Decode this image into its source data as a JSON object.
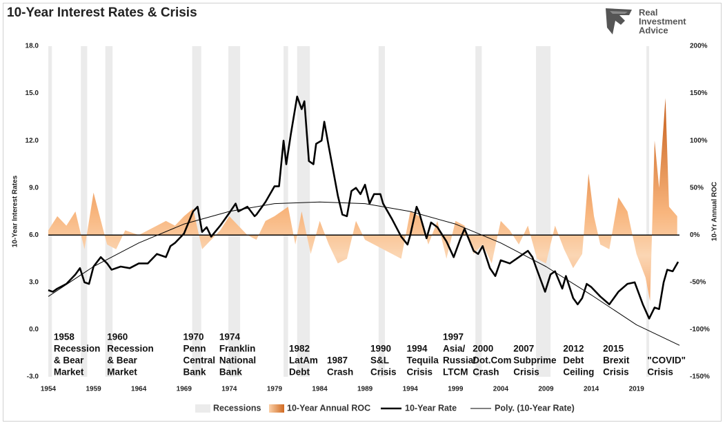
{
  "chart_data": {
    "type": "line",
    "title": "10-Year Interest Rates & Crisis",
    "logo": [
      "Real",
      "Investment",
      "Advice"
    ],
    "ylabel": "10-Year Interest Rates",
    "y2label": "10-Yr Annual ROC",
    "xlim": [
      1954,
      2023.75
    ],
    "xticks": [
      1954,
      1959,
      1964,
      1969,
      1974,
      1979,
      1984,
      1989,
      1994,
      1999,
      2004,
      2009,
      2014,
      2019
    ],
    "ylim": [
      -3,
      18
    ],
    "yticks": [
      {
        "value": -3,
        "label": "-3.0"
      },
      {
        "value": 0,
        "label": "0.0"
      },
      {
        "value": 3,
        "label": "3.0"
      },
      {
        "value": 6,
        "label": "6.0"
      },
      {
        "value": 9,
        "label": "9.0"
      },
      {
        "value": 12,
        "label": "12.0"
      },
      {
        "value": 15,
        "label": "15.0"
      },
      {
        "value": 18,
        "label": "18.0"
      }
    ],
    "y2lim": [
      -150,
      200
    ],
    "y2ticks": [
      {
        "value": -150,
        "label": "-150%"
      },
      {
        "value": -100,
        "label": "-100%"
      },
      {
        "value": -50,
        "label": "-50%"
      },
      {
        "value": 0,
        "label": "0%"
      },
      {
        "value": 50,
        "label": "50%"
      },
      {
        "value": 100,
        "label": "100%"
      },
      {
        "value": 150,
        "label": "150%"
      },
      {
        "value": 200,
        "label": "200%"
      }
    ],
    "recessions": {
      "name": "Recessions",
      "color": "#ebebeb",
      "periods": [
        [
          1954,
          1954.4
        ],
        [
          1957.6,
          1958.3
        ],
        [
          1960.3,
          1961.1
        ],
        [
          1969.9,
          1970.9
        ],
        [
          1973.9,
          1975.2
        ],
        [
          1980,
          1980.5
        ],
        [
          1981.5,
          1982.9
        ],
        [
          1990.5,
          1991.2
        ],
        [
          2001.2,
          2001.9
        ],
        [
          2007.9,
          2009.5
        ],
        [
          2020.1,
          2020.4
        ]
      ]
    },
    "series": [
      {
        "name": "10-Year Annual ROC",
        "color": "#ee8a3c",
        "type": "area",
        "axis": "y2",
        "x": [
          1954,
          1955,
          1956,
          1957,
          1958,
          1959,
          1960.5,
          1961.5,
          1962.5,
          1964,
          1966,
          1967,
          1968,
          1969,
          1970,
          1971,
          1972,
          1973,
          1974,
          1975,
          1976,
          1977,
          1978,
          1979,
          1980.5,
          1981.3,
          1982,
          1983,
          1984,
          1985,
          1986,
          1987,
          1988,
          1989,
          1990,
          1991,
          1992,
          1993,
          1994,
          1995,
          1996,
          1997,
          1998,
          1999,
          2000,
          2001,
          2002,
          2003,
          2004,
          2005,
          2006,
          2007,
          2008,
          2009,
          2010,
          2011,
          2012,
          2013,
          2013.7,
          2014.3,
          2015,
          2016,
          2017,
          2018,
          2019,
          2020,
          2020.5,
          2021,
          2021.5,
          2022.2,
          2022.6,
          2023.5
        ],
        "values": [
          5,
          20,
          10,
          25,
          -15,
          45,
          -10,
          -15,
          5,
          0,
          10,
          15,
          10,
          20,
          28,
          -15,
          -5,
          5,
          20,
          10,
          0,
          -5,
          15,
          20,
          30,
          -10,
          25,
          -20,
          15,
          -10,
          -30,
          -25,
          15,
          -5,
          -10,
          -15,
          -20,
          -25,
          25,
          20,
          -10,
          15,
          -25,
          15,
          10,
          -20,
          -10,
          -30,
          15,
          5,
          -10,
          10,
          -25,
          -30,
          10,
          -15,
          -35,
          -20,
          65,
          20,
          -10,
          -15,
          40,
          25,
          -20,
          -45,
          -70,
          100,
          50,
          145,
          30,
          20
        ]
      },
      {
        "name": "10-Year Rate",
        "color": "#000000",
        "type": "line",
        "width": 2.6,
        "x": [
          1954,
          1954.5,
          1955,
          1956,
          1957,
          1957.5,
          1958,
          1958.5,
          1959,
          1959.8,
          1960.5,
          1961,
          1962,
          1963,
          1964,
          1965,
          1966,
          1967,
          1967.5,
          1968,
          1969,
          1970,
          1970.5,
          1971,
          1971.5,
          1972,
          1973,
          1974,
          1974.7,
          1975,
          1976,
          1976.8,
          1977,
          1978,
          1979,
          1979.5,
          1980,
          1980.3,
          1980.8,
          1981.5,
          1982,
          1982.3,
          1982.8,
          1983.3,
          1983.6,
          1984.2,
          1984.5,
          1985,
          1986,
          1986.5,
          1987,
          1987.5,
          1988,
          1988.5,
          1989,
          1989.5,
          1990,
          1990.7,
          1991,
          1992,
          1993,
          1993.7,
          1994,
          1994.7,
          1995,
          1995.8,
          1996.3,
          1997,
          1998,
          1998.8,
          1999.5,
          2000,
          2001,
          2001.5,
          2002,
          2002.8,
          2003.4,
          2004,
          2005,
          2006,
          2007,
          2007.5,
          2008,
          2008.9,
          2009.5,
          2010,
          2010.8,
          2011.2,
          2012,
          2012.5,
          2013,
          2013.5,
          2014,
          2015,
          2016,
          2017,
          2018,
          2018.8,
          2019.7,
          2020.4,
          2021,
          2021.5,
          2022,
          2022.4,
          2023,
          2023.6
        ],
        "values": [
          2.5,
          2.4,
          2.6,
          2.9,
          3.5,
          3.9,
          3.0,
          2.9,
          4.0,
          4.6,
          4.2,
          3.8,
          4.0,
          3.9,
          4.2,
          4.2,
          4.8,
          4.6,
          5.3,
          5.5,
          6.1,
          7.5,
          7.8,
          6.2,
          6.5,
          5.9,
          6.6,
          7.4,
          8.0,
          7.5,
          7.8,
          7.2,
          7.3,
          8.1,
          9.1,
          9.1,
          12.0,
          10.5,
          12.4,
          14.8,
          14.0,
          14.5,
          10.7,
          10.5,
          11.8,
          12.0,
          13.2,
          11.6,
          8.5,
          7.3,
          7.2,
          8.8,
          9.0,
          8.6,
          9.2,
          8.0,
          8.6,
          8.6,
          8.0,
          7.0,
          5.9,
          5.4,
          6.0,
          7.8,
          7.4,
          5.8,
          6.8,
          6.5,
          5.6,
          4.6,
          5.7,
          6.4,
          5.0,
          4.8,
          5.3,
          3.9,
          3.4,
          4.4,
          4.2,
          4.6,
          5.0,
          4.6,
          3.8,
          2.4,
          3.5,
          3.7,
          2.6,
          3.4,
          2.0,
          1.6,
          2.0,
          2.9,
          2.7,
          2.1,
          1.6,
          2.4,
          2.9,
          3.0,
          1.6,
          0.7,
          1.4,
          1.3,
          3.0,
          3.8,
          3.7,
          4.3
        ]
      },
      {
        "name": "Poly. (10-Year Rate)",
        "color": "#000000",
        "type": "line",
        "width": 1,
        "x": [
          1954,
          1959,
          1964,
          1969,
          1974,
          1979,
          1984,
          1989,
          1994,
          1999,
          2004,
          2009,
          2014,
          2019,
          2023.75
        ],
        "values": [
          2.1,
          4.0,
          5.5,
          6.7,
          7.5,
          8.0,
          8.1,
          8.0,
          7.5,
          6.7,
          5.5,
          4.0,
          2.2,
          0.3,
          -1.0
        ]
      }
    ],
    "annotations": [
      {
        "x": 1954.6,
        "lines": [
          "1958",
          "Recession",
          "& Bear",
          "Market"
        ]
      },
      {
        "x": 1960.5,
        "lines": [
          "1960",
          "Recession",
          "& Bear",
          "Market"
        ]
      },
      {
        "x": 1968.9,
        "lines": [
          "1970",
          "Penn",
          "Central",
          "Bank"
        ]
      },
      {
        "x": 1972.9,
        "lines": [
          "1974",
          "Franklin",
          "National",
          "Bank"
        ]
      },
      {
        "x": 1980.6,
        "lines": [
          "1982",
          "LatAm",
          "Debt"
        ]
      },
      {
        "x": 1984.8,
        "lines": [
          "1987",
          "Crash"
        ]
      },
      {
        "x": 1989.6,
        "lines": [
          "1990",
          "S&L",
          "Crisis"
        ]
      },
      {
        "x": 1993.6,
        "lines": [
          "1994",
          "Tequila",
          "Crisis"
        ]
      },
      {
        "x": 1997.6,
        "lines": [
          "1997",
          "Asia/",
          "Russia/",
          "LTCM"
        ]
      },
      {
        "x": 2000.9,
        "lines": [
          "2000",
          "Dot.Com",
          "Crash"
        ]
      },
      {
        "x": 2005.4,
        "lines": [
          "2007",
          "Subprime",
          "Crisis"
        ]
      },
      {
        "x": 2010.9,
        "lines": [
          "2012",
          "Debt",
          "Ceiling"
        ]
      },
      {
        "x": 2015.3,
        "lines": [
          "2015",
          "Brexit",
          "Crisis"
        ]
      },
      {
        "x": 2020.2,
        "lines": [
          "\"COVID\"",
          "Crisis"
        ]
      }
    ],
    "legend": "bottom"
  }
}
